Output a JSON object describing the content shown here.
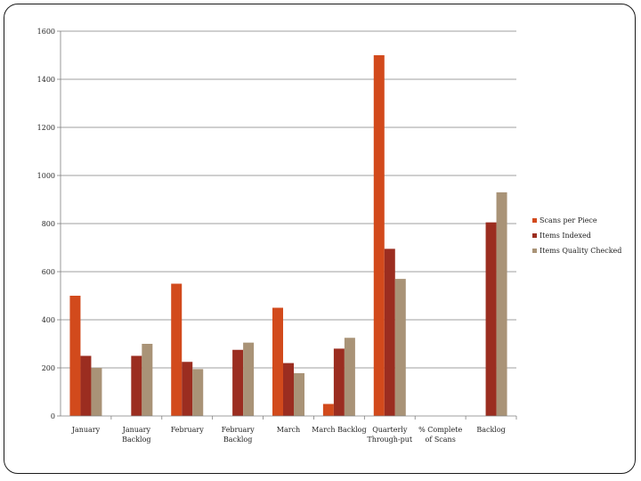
{
  "chart_data": {
    "type": "bar",
    "categories": [
      [
        "January"
      ],
      [
        "January",
        "Backlog"
      ],
      [
        "February"
      ],
      [
        "February",
        "Backlog"
      ],
      [
        "March"
      ],
      [
        "March Backlog"
      ],
      [
        "Quarterly",
        "Through-put"
      ],
      [
        "% Complete",
        "of Scans"
      ],
      [
        "Backlog"
      ]
    ],
    "series": [
      {
        "name": "Scans per Piece",
        "color": "#d24a1c",
        "values": [
          500,
          null,
          550,
          null,
          450,
          50,
          1500,
          null,
          null
        ]
      },
      {
        "name": "Items Indexed",
        "color": "#9b2d20",
        "values": [
          250,
          250,
          225,
          275,
          220,
          280,
          695,
          null,
          805
        ]
      },
      {
        "name": "Items Quality Checked",
        "color": "#a99377",
        "values": [
          200,
          300,
          195,
          305,
          178,
          325,
          570,
          null,
          930
        ]
      }
    ],
    "ylim": [
      0,
      1600
    ],
    "yticks": [
      0,
      200,
      400,
      600,
      800,
      1000,
      1200,
      1400,
      1600
    ],
    "grid": true,
    "legend_position": "right"
  }
}
